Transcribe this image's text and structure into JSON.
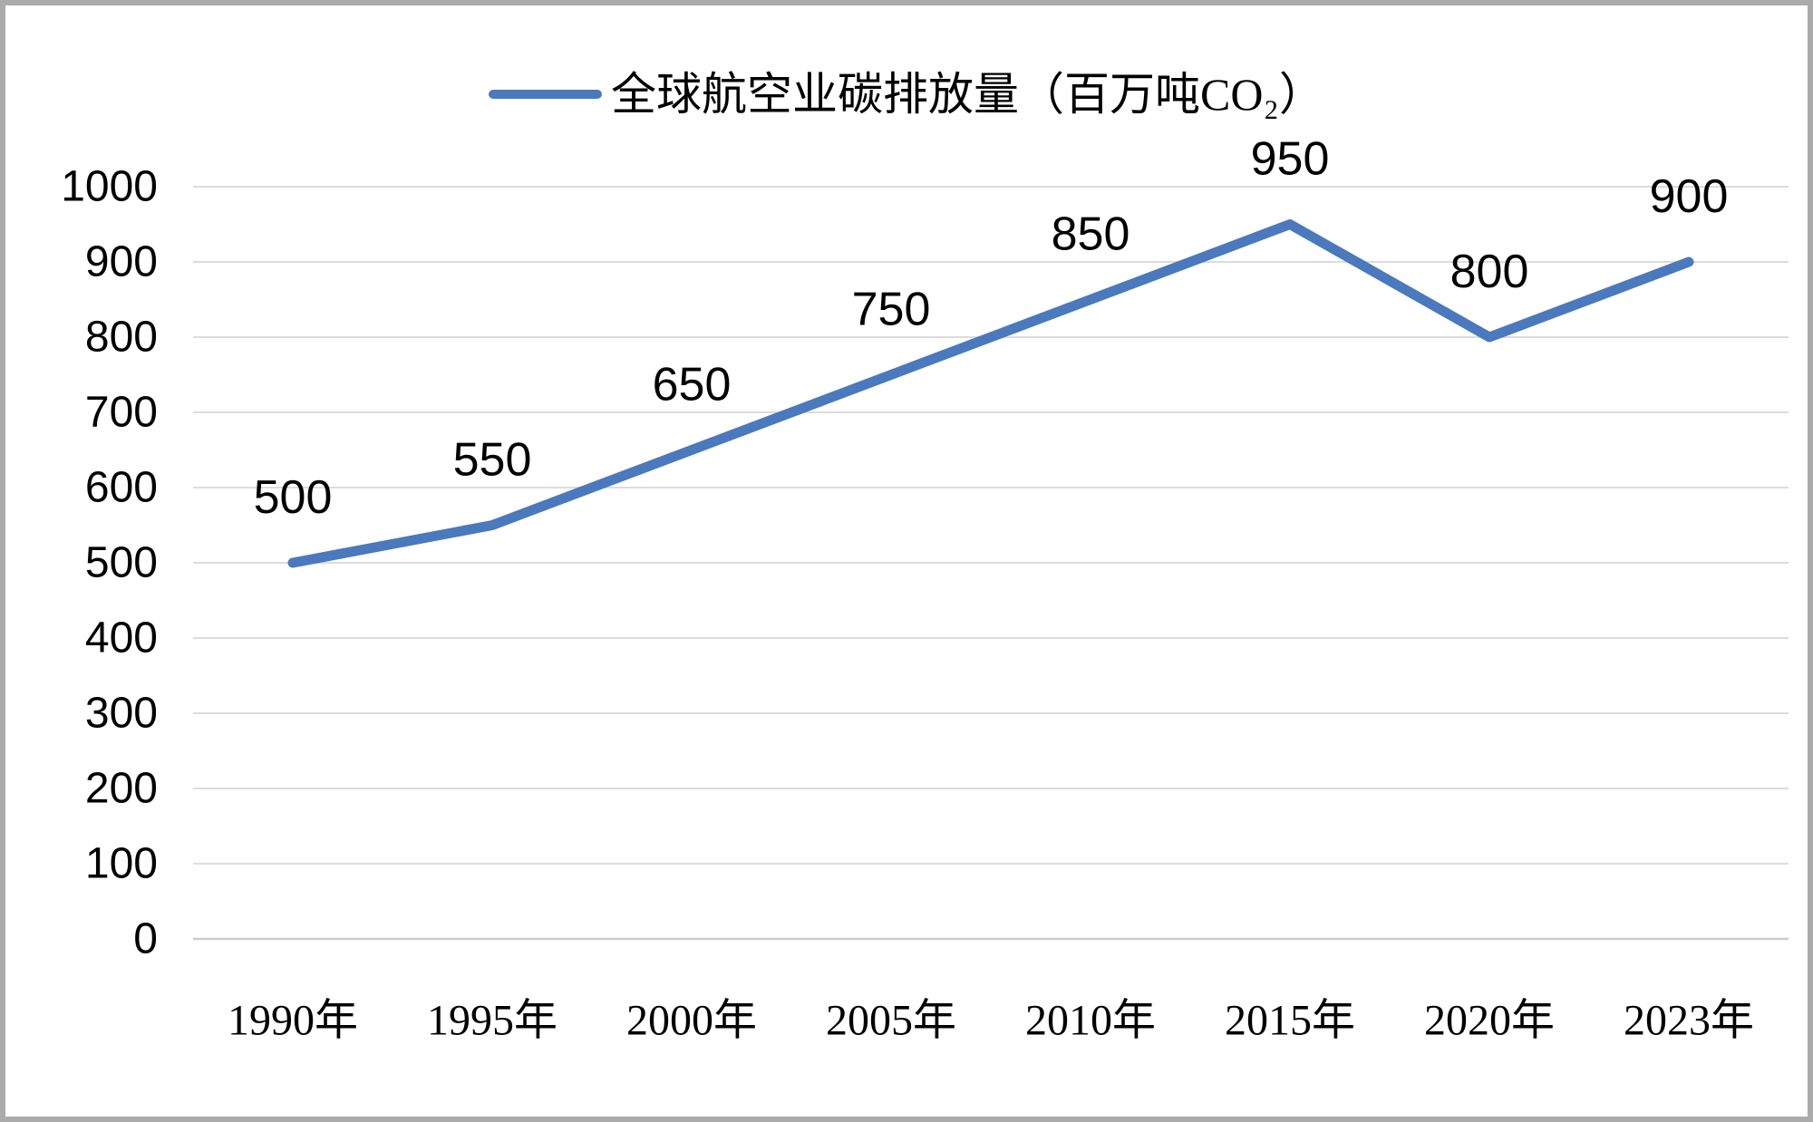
{
  "window": {
    "background": "#FFFFFF",
    "border_color": "#ABABAB"
  },
  "legend": {
    "label": "全球航空业碳排放量（百万吨CO₂）",
    "swatch_color": "#4A79BD"
  },
  "chart_data": {
    "type": "line",
    "title": "全球航空业碳排放量（百万吨CO₂）",
    "categories": [
      "1990年",
      "1995年",
      "2000年",
      "2005年",
      "2010年",
      "2015年",
      "2020年",
      "2023年"
    ],
    "series": [
      {
        "name": "全球航空业碳排放量（百万吨CO₂）",
        "values": [
          500,
          550,
          650,
          750,
          850,
          950,
          800,
          900
        ]
      }
    ],
    "data_labels": [
      "500",
      "550",
      "650",
      "750",
      "850",
      "950",
      "800",
      "900"
    ],
    "xlabel": "",
    "ylabel": "",
    "ylim": [
      0,
      1000
    ],
    "yticks": [
      0,
      100,
      200,
      300,
      400,
      500,
      600,
      700,
      800,
      900,
      1000
    ],
    "grid": true,
    "legend_position": "top",
    "line_color": "#4A79BD",
    "gridline_color": "#DCDCDC",
    "axisline_color": "#CCCCCC",
    "text_color": "#000000"
  }
}
